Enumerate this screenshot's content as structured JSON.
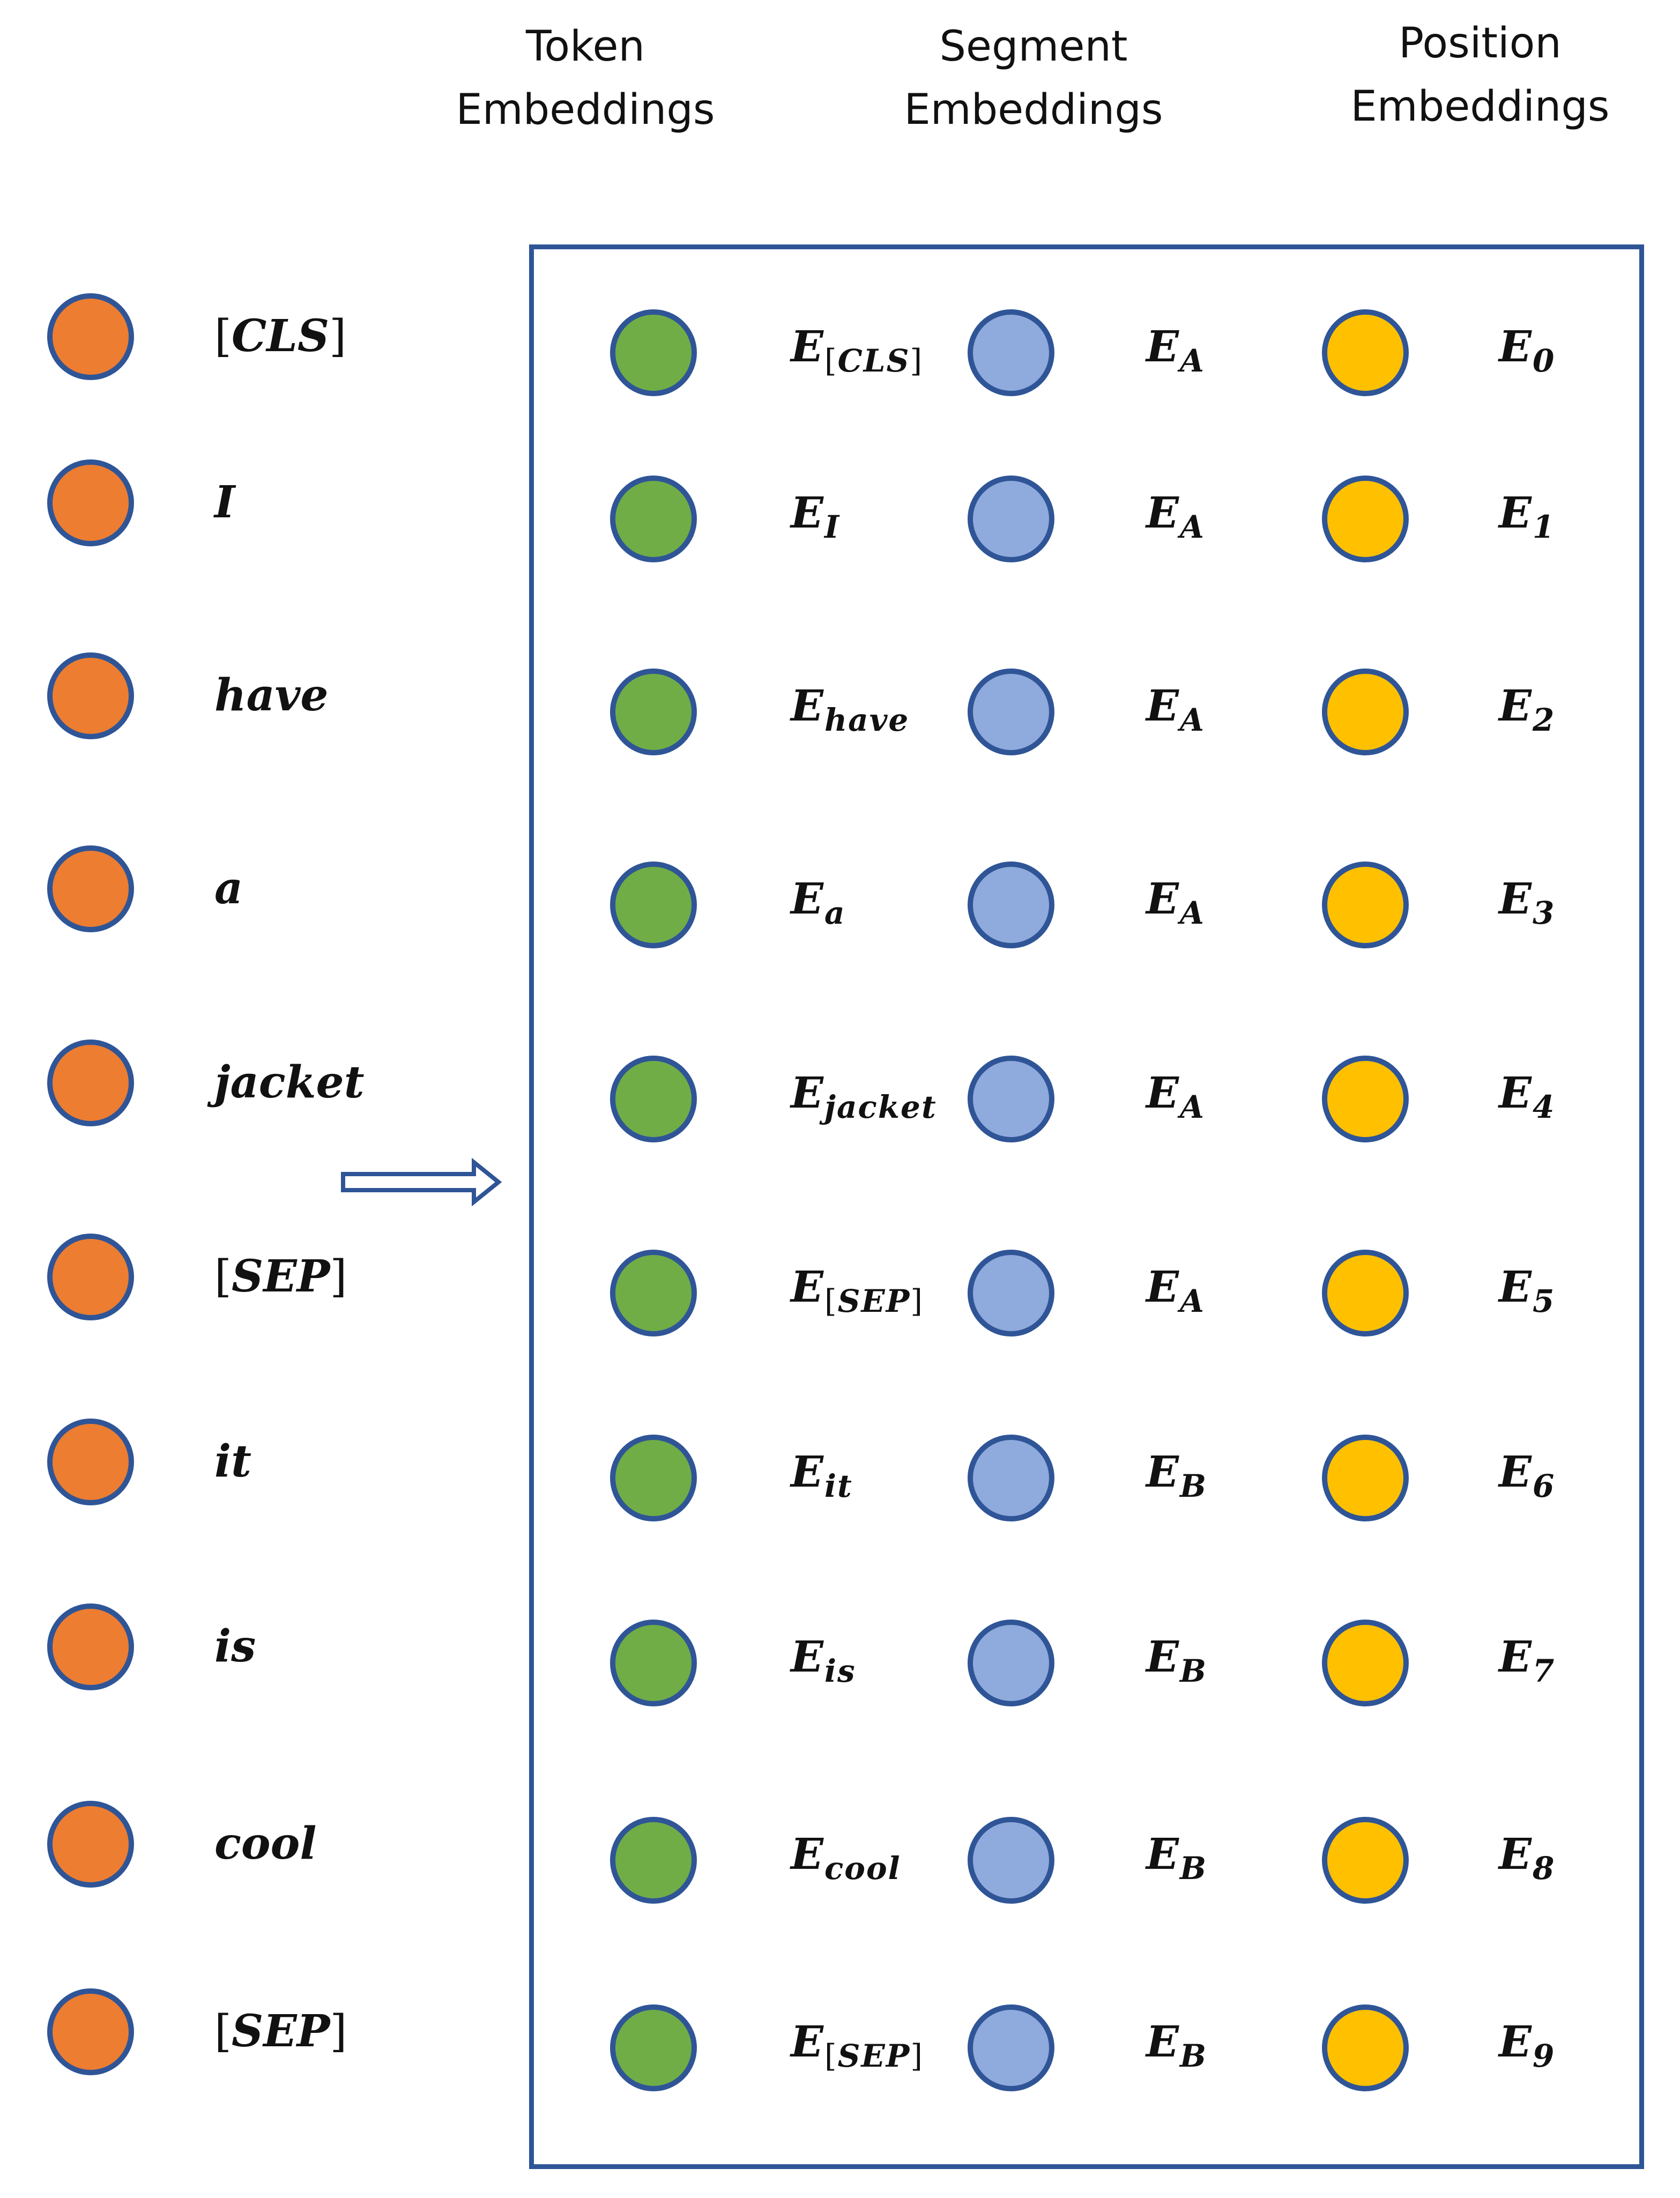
{
  "headers": {
    "token": [
      "Token",
      "Embeddings"
    ],
    "segment": [
      "Segment",
      "Embeddings"
    ],
    "position": [
      "Position",
      "Embeddings"
    ]
  },
  "colors": {
    "input_circle": "#ed7d31",
    "token_circle": "#70ad47",
    "segment_circle": "#8faadc",
    "position_circle": "#ffc000",
    "outline": "#2f5597"
  },
  "arrow_icon": "double-right-arrow-icon",
  "rows": [
    {
      "input": "[CLS]",
      "token": {
        "base": "E",
        "sub": "[CLS]"
      },
      "segment": {
        "base": "E",
        "sub": "A"
      },
      "position": {
        "base": "E",
        "sub": "0"
      }
    },
    {
      "input": "I",
      "token": {
        "base": "E",
        "sub": "I"
      },
      "segment": {
        "base": "E",
        "sub": "A"
      },
      "position": {
        "base": "E",
        "sub": "1"
      }
    },
    {
      "input": "have",
      "token": {
        "base": "E",
        "sub": "have"
      },
      "segment": {
        "base": "E",
        "sub": "A"
      },
      "position": {
        "base": "E",
        "sub": "2"
      }
    },
    {
      "input": "a",
      "token": {
        "base": "E",
        "sub": "a"
      },
      "segment": {
        "base": "E",
        "sub": "A"
      },
      "position": {
        "base": "E",
        "sub": "3"
      }
    },
    {
      "input": "jacket",
      "token": {
        "base": "E",
        "sub": "jacket"
      },
      "segment": {
        "base": "E",
        "sub": "A"
      },
      "position": {
        "base": "E",
        "sub": "4"
      }
    },
    {
      "input": "[SEP]",
      "token": {
        "base": "E",
        "sub": "[SEP]"
      },
      "segment": {
        "base": "E",
        "sub": "A"
      },
      "position": {
        "base": "E",
        "sub": "5"
      }
    },
    {
      "input": "it",
      "token": {
        "base": "E",
        "sub": "it"
      },
      "segment": {
        "base": "E",
        "sub": "B"
      },
      "position": {
        "base": "E",
        "sub": "6"
      }
    },
    {
      "input": "is",
      "token": {
        "base": "E",
        "sub": "is"
      },
      "segment": {
        "base": "E",
        "sub": "B"
      },
      "position": {
        "base": "E",
        "sub": "7"
      }
    },
    {
      "input": "cool",
      "token": {
        "base": "E",
        "sub": "cool"
      },
      "segment": {
        "base": "E",
        "sub": "B"
      },
      "position": {
        "base": "E",
        "sub": "8"
      }
    },
    {
      "input": "[SEP]",
      "token": {
        "base": "E",
        "sub": "[SEP]"
      },
      "segment": {
        "base": "E",
        "sub": "B"
      },
      "position": {
        "base": "E",
        "sub": "9"
      }
    }
  ]
}
